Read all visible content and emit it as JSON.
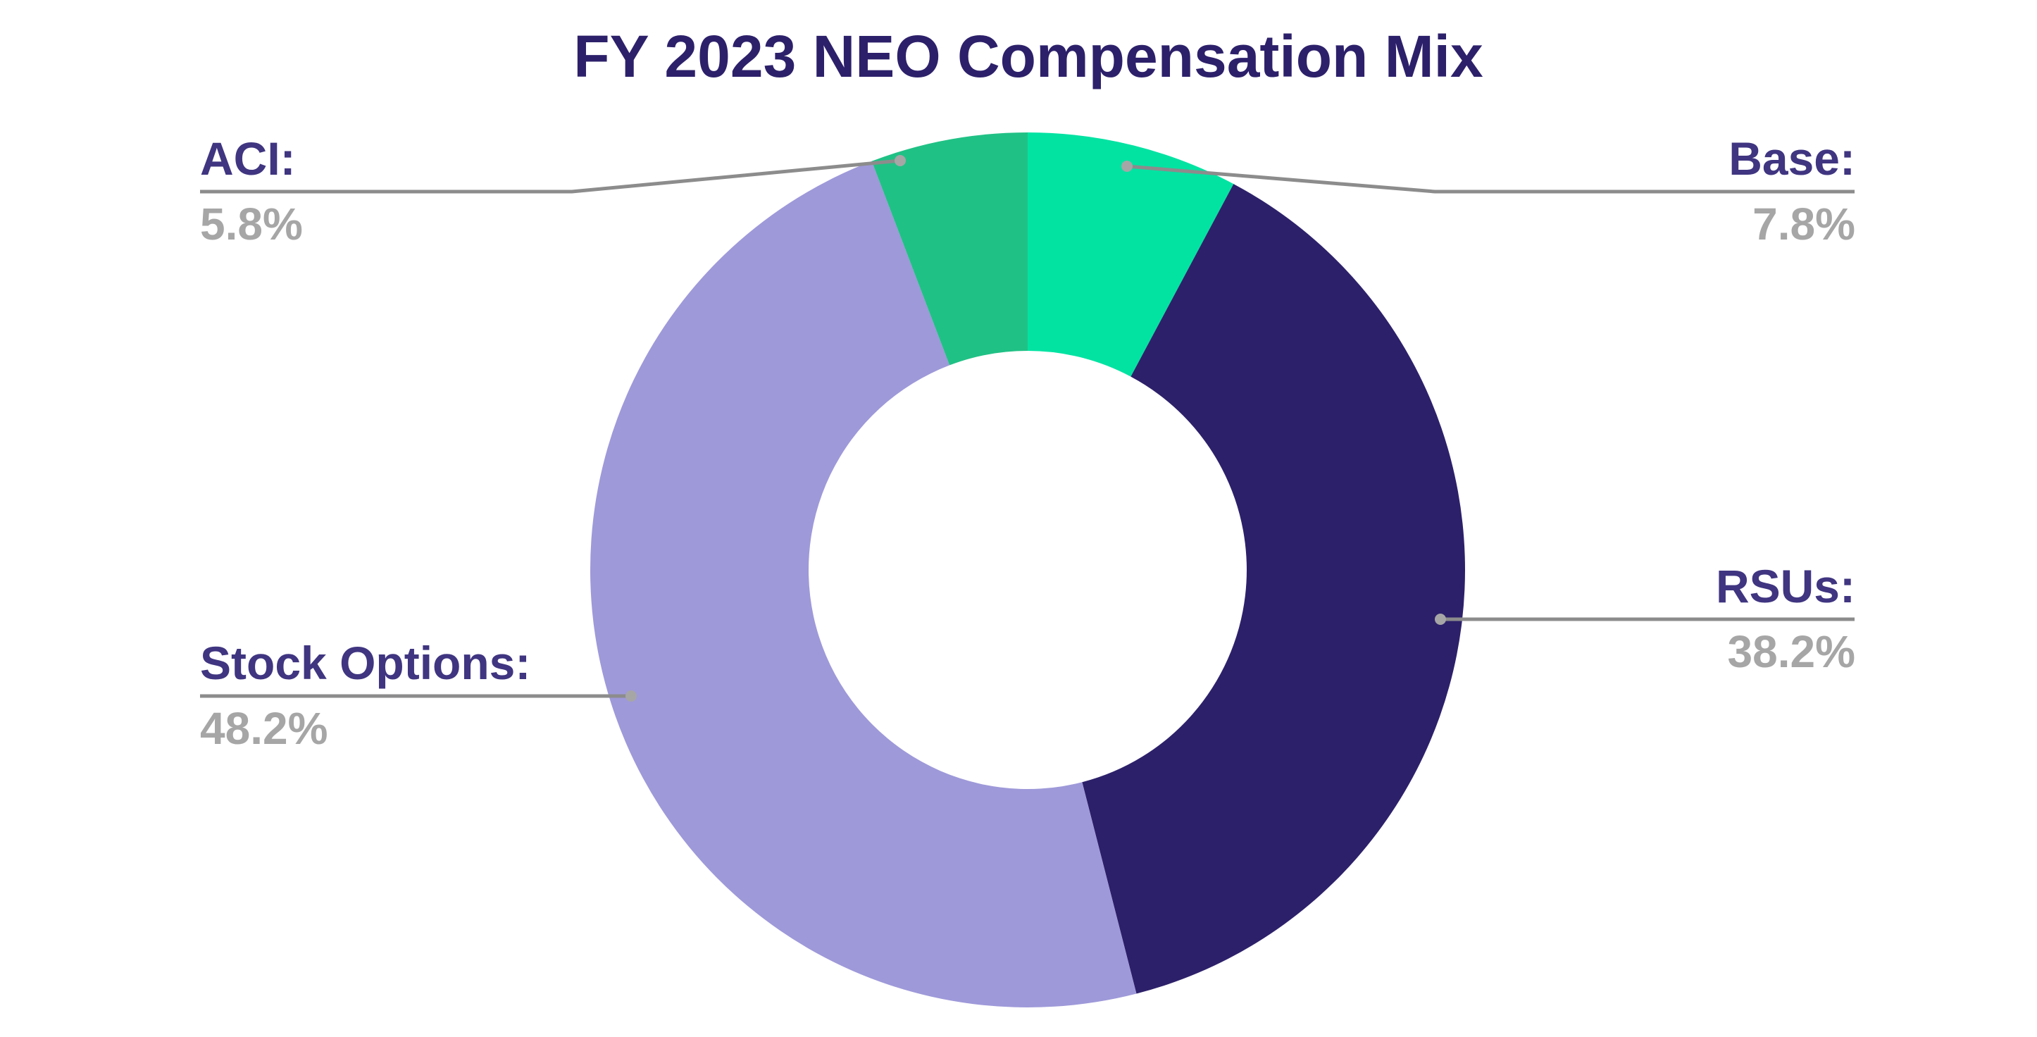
{
  "chart_data": {
    "type": "pie",
    "variant": "donut",
    "title": "FY 2023 NEO Compensation Mix",
    "categories": [
      "Base",
      "RSUs",
      "Stock Options",
      "ACI"
    ],
    "values": [
      7.8,
      38.2,
      48.2,
      5.8
    ],
    "unit": "%",
    "colors": [
      "#02E3A2",
      "#2D206A",
      "#9E99D9",
      "#20C185"
    ],
    "start_angle": "12 o'clock",
    "direction": "clockwise",
    "hole_ratio": 0.5,
    "legend": "none (callout labels)",
    "labels": [
      {
        "name": "Base:",
        "value": "7.8%",
        "side": "right"
      },
      {
        "name": "RSUs:",
        "value": "38.2%",
        "side": "right"
      },
      {
        "name": "Stock Options:",
        "value": "48.2%",
        "side": "left"
      },
      {
        "name": "ACI:",
        "value": "5.8%",
        "side": "left"
      }
    ]
  },
  "colors": {
    "title": "#2D206A",
    "label": "#3F3580",
    "value": "#A6A6A6",
    "leader_line": "#8C8C8C"
  }
}
